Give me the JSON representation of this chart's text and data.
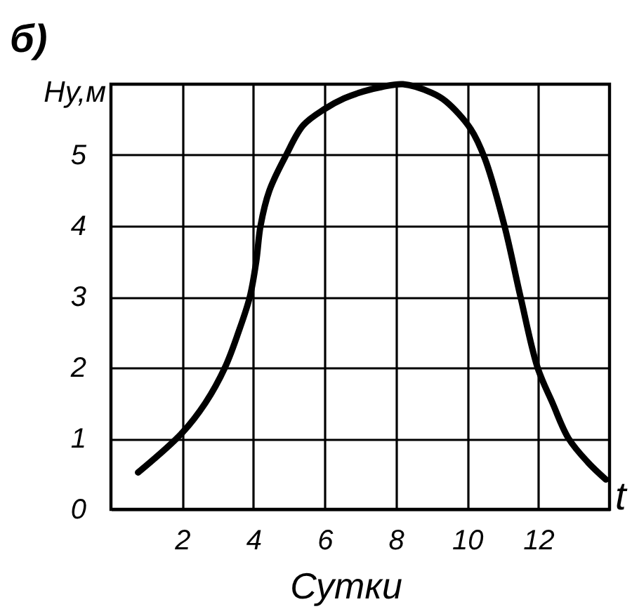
{
  "chart_data": {
    "type": "line",
    "title": "б)",
    "xlabel": "Сутки",
    "ylabel": "Hy,м",
    "annotations": [
      "t"
    ],
    "xlim": [
      0,
      14
    ],
    "ylim": [
      0,
      6
    ],
    "xticks": [
      2,
      4,
      6,
      8,
      10,
      12
    ],
    "yticks": [
      0,
      1,
      2,
      3,
      4,
      5
    ],
    "grid": true,
    "series": [
      {
        "color": "#000000",
        "x": [
          0.76,
          2.0,
          2.65,
          3.2,
          3.58,
          3.9,
          4.08,
          4.2,
          4.45,
          4.92,
          5.4,
          6.0,
          6.55,
          7.1,
          7.6,
          8.2,
          9.0,
          9.4,
          10.1,
          10.5,
          11.05,
          11.5,
          11.98,
          12.4,
          12.85,
          13.4,
          13.9
        ],
        "values": [
          0.52,
          1.08,
          1.5,
          2.0,
          2.5,
          3.0,
          3.5,
          4.0,
          4.5,
          5.0,
          5.42,
          5.65,
          5.8,
          5.9,
          5.96,
          6.0,
          5.88,
          5.76,
          5.37,
          4.95,
          4.0,
          3.0,
          2.0,
          1.5,
          1.0,
          0.66,
          0.42
        ]
      }
    ]
  }
}
